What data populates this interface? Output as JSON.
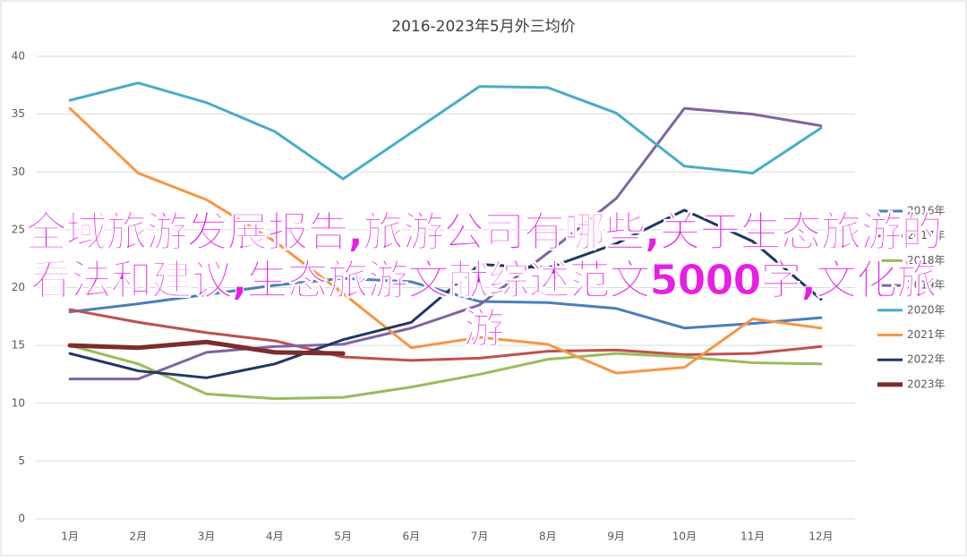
{
  "chart_data": {
    "type": "line",
    "title": "2016-2023年5月外三均价",
    "categories": [
      "1月",
      "2月",
      "3月",
      "4月",
      "5月",
      "6月",
      "7月",
      "8月",
      "9月",
      "10月",
      "11月",
      "12月"
    ],
    "series": [
      {
        "name": "2016年",
        "color": "#4a7ebb",
        "values": [
          17.9,
          18.6,
          19.4,
          20.2,
          20.8,
          20.5,
          18.8,
          18.7,
          18.2,
          16.5,
          16.9,
          17.4
        ]
      },
      {
        "name": "2017年",
        "color": "#c0504d",
        "values": [
          18.1,
          17.0,
          16.1,
          15.4,
          14.0,
          13.7,
          13.9,
          14.5,
          14.6,
          14.2,
          14.3,
          14.9
        ]
      },
      {
        "name": "2018年",
        "color": "#9bbb59",
        "values": [
          15.0,
          13.4,
          10.8,
          10.4,
          10.5,
          11.4,
          12.5,
          13.8,
          14.3,
          14.0,
          13.5,
          13.4
        ]
      },
      {
        "name": "2019年",
        "color": "#8064a2",
        "values": [
          12.1,
          12.1,
          14.4,
          14.9,
          15.1,
          16.5,
          18.5,
          23.0,
          27.7,
          35.5,
          35.0,
          34.0
        ]
      },
      {
        "name": "2020年",
        "color": "#4bacc6",
        "values": [
          36.2,
          37.7,
          36.0,
          33.5,
          29.4,
          33.4,
          37.4,
          37.3,
          35.1,
          30.5,
          29.9,
          33.8
        ]
      },
      {
        "name": "2021年",
        "color": "#f79646",
        "values": [
          35.5,
          29.9,
          27.6,
          24.0,
          19.5,
          14.8,
          15.7,
          15.1,
          12.6,
          13.1,
          17.3,
          16.5
        ]
      },
      {
        "name": "2022年",
        "color": "#1f3864",
        "values": [
          14.3,
          12.8,
          12.2,
          13.4,
          15.5,
          17.0,
          22.0,
          21.7,
          23.8,
          26.7,
          24.0,
          19.0
        ]
      },
      {
        "name": "2023年",
        "color": "#7b2c2c",
        "values": [
          15.0,
          14.8,
          15.3,
          14.4,
          14.3,
          null,
          null,
          null,
          null,
          null,
          null,
          null
        ]
      }
    ],
    "ylim": [
      0,
      40
    ],
    "yticks": [
      0,
      5,
      10,
      15,
      20,
      25,
      30,
      35,
      40
    ],
    "grid": true,
    "legend": "right",
    "annotation": "全域旅游发展报告,旅游公司有哪些,关于生态旅游的看法和建议,生态旅游文献综述范文5000字,文化旅游"
  }
}
